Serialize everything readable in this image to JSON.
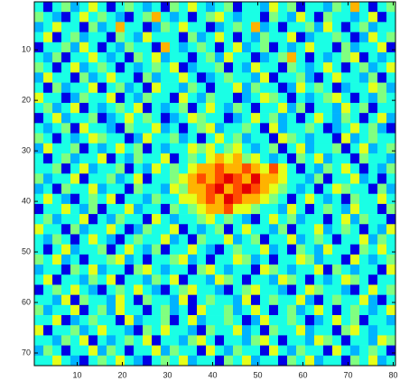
{
  "chart_data": {
    "type": "heatmap",
    "xlim": [
      0.5,
      80.5
    ],
    "ylim": [
      0.5,
      72.5
    ],
    "y_reversed": true,
    "xticks": [
      10,
      20,
      30,
      40,
      50,
      60,
      70,
      80
    ],
    "yticks": [
      10,
      20,
      30,
      40,
      50,
      60,
      70
    ],
    "clim": [
      0,
      10
    ],
    "colormap": "jet",
    "z": [
      [
        4,
        1,
        4,
        5,
        3,
        4,
        6,
        4,
        1,
        4,
        5,
        4,
        3,
        4,
        1,
        5,
        4,
        6,
        4,
        3,
        4,
        5,
        1,
        4,
        4,
        3,
        6,
        4,
        5,
        1,
        4,
        4,
        3,
        5,
        4,
        7,
        4,
        1,
        4,
        5
      ],
      [
        5,
        4,
        3,
        1,
        4,
        6,
        4,
        5,
        4,
        3,
        1,
        4,
        5,
        7,
        4,
        3,
        4,
        1,
        4,
        5,
        6,
        4,
        3,
        4,
        4,
        1,
        5,
        4,
        3,
        6,
        4,
        1,
        5,
        4,
        4,
        3,
        4,
        6,
        1,
        4
      ],
      [
        3,
        4,
        6,
        4,
        4,
        1,
        5,
        3,
        4,
        7,
        4,
        4,
        1,
        3,
        5,
        4,
        6,
        4,
        4,
        1,
        3,
        4,
        5,
        4,
        7,
        3,
        4,
        1,
        4,
        4,
        5,
        3,
        6,
        4,
        1,
        4,
        5,
        3,
        4,
        4
      ],
      [
        4,
        6,
        1,
        4,
        5,
        3,
        4,
        4,
        1,
        5,
        4,
        3,
        6,
        4,
        4,
        4,
        1,
        5,
        3,
        4,
        6,
        4,
        1,
        4,
        3,
        5,
        4,
        4,
        6,
        1,
        3,
        4,
        4,
        5,
        4,
        1,
        3,
        6,
        4,
        5
      ],
      [
        1,
        4,
        4,
        5,
        3,
        6,
        4,
        1,
        4,
        3,
        5,
        4,
        4,
        1,
        7,
        4,
        3,
        4,
        5,
        4,
        1,
        4,
        6,
        3,
        4,
        5,
        1,
        4,
        3,
        4,
        6,
        4,
        4,
        1,
        5,
        3,
        4,
        4,
        6,
        1
      ],
      [
        4,
        3,
        5,
        1,
        4,
        4,
        6,
        4,
        3,
        4,
        1,
        5,
        4,
        6,
        3,
        4,
        4,
        1,
        4,
        5,
        3,
        6,
        4,
        4,
        1,
        3,
        4,
        5,
        7,
        4,
        1,
        4,
        3,
        4,
        5,
        6,
        1,
        4,
        3,
        4
      ],
      [
        5,
        4,
        1,
        4,
        6,
        3,
        4,
        5,
        4,
        1,
        4,
        3,
        4,
        5,
        4,
        6,
        1,
        3,
        4,
        4,
        5,
        1,
        4,
        3,
        6,
        4,
        4,
        1,
        5,
        4,
        3,
        4,
        6,
        4,
        1,
        4,
        5,
        3,
        4,
        6
      ],
      [
        3,
        6,
        4,
        4,
        1,
        5,
        3,
        4,
        6,
        4,
        4,
        1,
        5,
        3,
        4,
        4,
        6,
        4,
        1,
        3,
        4,
        5,
        4,
        4,
        3,
        6,
        1,
        4,
        4,
        5,
        3,
        1,
        4,
        6,
        4,
        4,
        3,
        5,
        1,
        4
      ],
      [
        4,
        1,
        5,
        3,
        4,
        4,
        6,
        1,
        4,
        5,
        3,
        4,
        1,
        6,
        4,
        4,
        3,
        5,
        4,
        1,
        4,
        4,
        6,
        3,
        5,
        4,
        4,
        1,
        3,
        6,
        4,
        5,
        4,
        1,
        3,
        4,
        4,
        6,
        5,
        3
      ],
      [
        6,
        4,
        4,
        1,
        3,
        5,
        4,
        4,
        6,
        1,
        4,
        3,
        5,
        4,
        4,
        1,
        6,
        4,
        3,
        5,
        4,
        4,
        1,
        3,
        4,
        6,
        5,
        4,
        1,
        4,
        3,
        4,
        5,
        6,
        4,
        1,
        4,
        3,
        5,
        4
      ],
      [
        4,
        5,
        3,
        4,
        6,
        1,
        4,
        3,
        4,
        5,
        4,
        6,
        1,
        4,
        3,
        4,
        5,
        1,
        4,
        6,
        4,
        3,
        5,
        4,
        1,
        4,
        4,
        6,
        3,
        5,
        1,
        4,
        4,
        3,
        6,
        4,
        5,
        1,
        4,
        4
      ],
      [
        1,
        4,
        6,
        3,
        4,
        4,
        5,
        1,
        3,
        4,
        6,
        4,
        5,
        4,
        1,
        3,
        4,
        6,
        5,
        4,
        4,
        1,
        3,
        4,
        6,
        4,
        5,
        3,
        4,
        1,
        4,
        6,
        4,
        3,
        5,
        4,
        1,
        4,
        6,
        3
      ],
      [
        4,
        3,
        4,
        5,
        1,
        6,
        4,
        4,
        3,
        1,
        5,
        4,
        4,
        6,
        3,
        4,
        1,
        4,
        5,
        6,
        3,
        4,
        4,
        5,
        4,
        1,
        6,
        3,
        4,
        4,
        5,
        4,
        1,
        3,
        4,
        6,
        4,
        5,
        3,
        1
      ],
      [
        5,
        4,
        1,
        4,
        3,
        4,
        6,
        5,
        4,
        4,
        1,
        3,
        6,
        4,
        4,
        5,
        3,
        4,
        1,
        4,
        6,
        4,
        5,
        3,
        4,
        4,
        1,
        6,
        5,
        4,
        3,
        4,
        4,
        1,
        6,
        3,
        4,
        5,
        4,
        4
      ],
      [
        3,
        6,
        4,
        4,
        5,
        1,
        4,
        3,
        4,
        6,
        4,
        5,
        1,
        4,
        3,
        4,
        4,
        6,
        5,
        6,
        4,
        5,
        6,
        4,
        3,
        4,
        5,
        1,
        4,
        6,
        3,
        4,
        4,
        5,
        1,
        4,
        6,
        3,
        4,
        5
      ],
      [
        4,
        1,
        4,
        5,
        3,
        4,
        4,
        6,
        1,
        4,
        3,
        5,
        4,
        4,
        6,
        1,
        4,
        5,
        4,
        6,
        7,
        6,
        7,
        5,
        6,
        4,
        3,
        4,
        1,
        5,
        4,
        6,
        3,
        4,
        4,
        1,
        5,
        4,
        4,
        3
      ],
      [
        4,
        4,
        5,
        1,
        4,
        6,
        3,
        4,
        4,
        5,
        1,
        4,
        3,
        6,
        4,
        5,
        4,
        6,
        7,
        7,
        8,
        7,
        7,
        8,
        7,
        6,
        8,
        6,
        4,
        1,
        4,
        3,
        5,
        4,
        6,
        4,
        1,
        4,
        3,
        5
      ],
      [
        5,
        3,
        4,
        4,
        6,
        1,
        4,
        4,
        5,
        3,
        4,
        6,
        1,
        4,
        4,
        5,
        6,
        7,
        8,
        7,
        8,
        9,
        8,
        7,
        9,
        7,
        7,
        6,
        4,
        4,
        3,
        5,
        1,
        4,
        4,
        6,
        3,
        4,
        1,
        4
      ],
      [
        3,
        4,
        1,
        5,
        4,
        4,
        6,
        3,
        4,
        4,
        1,
        5,
        4,
        4,
        3,
        6,
        5,
        7,
        7,
        8,
        9,
        7,
        8,
        9,
        8,
        7,
        6,
        5,
        4,
        3,
        4,
        1,
        4,
        6,
        5,
        4,
        4,
        1,
        5,
        3
      ],
      [
        4,
        6,
        4,
        3,
        1,
        4,
        5,
        4,
        6,
        1,
        4,
        4,
        3,
        5,
        4,
        4,
        6,
        6,
        7,
        8,
        7,
        9,
        8,
        7,
        7,
        6,
        5,
        4,
        1,
        4,
        6,
        4,
        3,
        4,
        1,
        5,
        4,
        4,
        6,
        4
      ],
      [
        1,
        4,
        4,
        6,
        4,
        3,
        5,
        1,
        4,
        4,
        6,
        3,
        4,
        4,
        1,
        5,
        4,
        5,
        6,
        7,
        7,
        8,
        6,
        6,
        5,
        4,
        4,
        3,
        6,
        4,
        1,
        4,
        5,
        4,
        3,
        6,
        4,
        4,
        1,
        5
      ],
      [
        4,
        5,
        3,
        4,
        4,
        6,
        1,
        4,
        3,
        5,
        4,
        4,
        1,
        6,
        4,
        3,
        4,
        4,
        5,
        6,
        4,
        5,
        4,
        3,
        1,
        4,
        6,
        4,
        5,
        3,
        4,
        4,
        1,
        4,
        6,
        3,
        5,
        4,
        4,
        1
      ],
      [
        6,
        4,
        4,
        1,
        5,
        3,
        4,
        4,
        6,
        4,
        1,
        3,
        5,
        4,
        4,
        6,
        1,
        4,
        3,
        4,
        5,
        1,
        4,
        6,
        4,
        4,
        3,
        5,
        1,
        4,
        4,
        6,
        3,
        4,
        5,
        4,
        1,
        4,
        3,
        6
      ],
      [
        4,
        3,
        5,
        4,
        1,
        4,
        6,
        4,
        3,
        1,
        4,
        5,
        4,
        4,
        6,
        3,
        4,
        1,
        5,
        4,
        4,
        6,
        3,
        4,
        5,
        1,
        4,
        4,
        6,
        3,
        4,
        5,
        4,
        1,
        4,
        4,
        6,
        3,
        5,
        4
      ],
      [
        4,
        1,
        4,
        6,
        3,
        4,
        4,
        5,
        1,
        4,
        6,
        4,
        3,
        5,
        1,
        4,
        4,
        6,
        4,
        3,
        1,
        4,
        5,
        4,
        4,
        6,
        3,
        4,
        1,
        5,
        4,
        3,
        6,
        4,
        4,
        1,
        5,
        4,
        6,
        4
      ],
      [
        5,
        4,
        6,
        3,
        4,
        1,
        4,
        4,
        5,
        6,
        3,
        4,
        1,
        4,
        4,
        5,
        6,
        3,
        4,
        1,
        4,
        4,
        6,
        5,
        3,
        4,
        1,
        4,
        4,
        6,
        5,
        3,
        4,
        4,
        1,
        6,
        4,
        3,
        4,
        5
      ],
      [
        3,
        4,
        4,
        1,
        5,
        4,
        6,
        3,
        4,
        4,
        1,
        5,
        6,
        4,
        3,
        4,
        4,
        1,
        5,
        6,
        4,
        3,
        4,
        4,
        1,
        6,
        5,
        4,
        3,
        4,
        4,
        6,
        1,
        5,
        4,
        3,
        4,
        4,
        1,
        6
      ],
      [
        4,
        6,
        1,
        4,
        4,
        3,
        5,
        4,
        6,
        1,
        4,
        4,
        3,
        5,
        4,
        6,
        1,
        4,
        4,
        3,
        6,
        5,
        4,
        1,
        4,
        4,
        3,
        6,
        5,
        4,
        1,
        4,
        3,
        4,
        6,
        5,
        4,
        1,
        4,
        4
      ],
      [
        1,
        4,
        5,
        4,
        6,
        4,
        3,
        1,
        4,
        5,
        4,
        6,
        4,
        3,
        1,
        4,
        5,
        6,
        4,
        4,
        3,
        1,
        4,
        5,
        6,
        4,
        4,
        3,
        1,
        4,
        6,
        5,
        4,
        4,
        3,
        1,
        4,
        6,
        4,
        5
      ],
      [
        4,
        4,
        3,
        6,
        1,
        5,
        4,
        4,
        3,
        6,
        4,
        1,
        5,
        4,
        4,
        3,
        6,
        1,
        4,
        5,
        4,
        4,
        3,
        6,
        1,
        4,
        5,
        4,
        4,
        6,
        3,
        1,
        4,
        5,
        4,
        4,
        6,
        3,
        1,
        4
      ],
      [
        5,
        3,
        4,
        4,
        6,
        1,
        4,
        5,
        3,
        6,
        4,
        4,
        1,
        4,
        5,
        3,
        4,
        1,
        6,
        4,
        4,
        5,
        3,
        4,
        6,
        4,
        1,
        4,
        5,
        3,
        4,
        6,
        4,
        1,
        4,
        5,
        4,
        3,
        4,
        6
      ],
      [
        4,
        4,
        6,
        1,
        3,
        4,
        5,
        4,
        4,
        1,
        6,
        3,
        4,
        4,
        5,
        1,
        4,
        6,
        3,
        4,
        4,
        5,
        4,
        1,
        3,
        6,
        4,
        4,
        5,
        4,
        1,
        3,
        4,
        6,
        4,
        5,
        1,
        4,
        4,
        3
      ],
      [
        6,
        1,
        4,
        4,
        5,
        3,
        4,
        6,
        4,
        4,
        3,
        1,
        5,
        4,
        6,
        4,
        4,
        3,
        1,
        5,
        4,
        4,
        6,
        3,
        4,
        1,
        5,
        4,
        4,
        6,
        3,
        4,
        4,
        1,
        5,
        6,
        4,
        3,
        4,
        4
      ],
      [
        4,
        4,
        3,
        5,
        4,
        6,
        1,
        4,
        3,
        4,
        5,
        4,
        6,
        1,
        4,
        4,
        3,
        5,
        6,
        4,
        1,
        4,
        4,
        3,
        5,
        6,
        4,
        1,
        4,
        4,
        3,
        6,
        5,
        4,
        1,
        4,
        4,
        3,
        6,
        5
      ],
      [
        3,
        5,
        4,
        1,
        4,
        4,
        6,
        3,
        5,
        4,
        1,
        4,
        4,
        6,
        3,
        5,
        4,
        4,
        1,
        6,
        4,
        3,
        5,
        4,
        4,
        1,
        6,
        4,
        3,
        5,
        4,
        4,
        1,
        6,
        4,
        3,
        4,
        5,
        4,
        1
      ],
      [
        4,
        4,
        6,
        4,
        3,
        1,
        4,
        5,
        4,
        6,
        4,
        3,
        1,
        4,
        5,
        4,
        6,
        3,
        4,
        4,
        1,
        5,
        4,
        6,
        3,
        4,
        4,
        1,
        5,
        4,
        6,
        3,
        4,
        4,
        1,
        5,
        4,
        6,
        3,
        4
      ]
    ]
  }
}
